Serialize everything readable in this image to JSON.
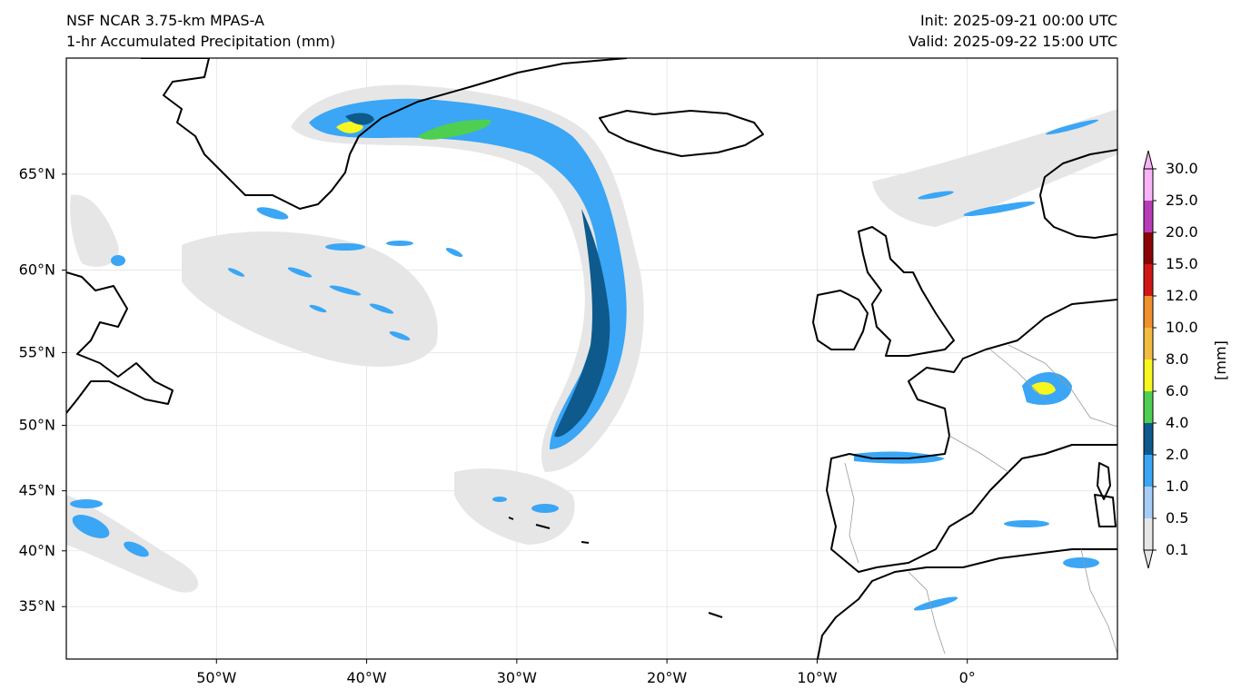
{
  "header": {
    "model": "NSF NCAR 3.75-km MPAS-A",
    "field": "1-hr Accumulated Precipitation (mm)",
    "init": "Init: 2025-09-21 00:00 UTC",
    "valid": "Valid: 2025-09-22 15:00 UTC"
  },
  "axes": {
    "lat_labels": [
      "65°N",
      "60°N",
      "55°N",
      "50°N",
      "45°N",
      "40°N",
      "35°N"
    ],
    "lat_values": [
      65,
      60,
      55,
      50,
      45,
      40,
      35
    ],
    "lon_labels": [
      "50°W",
      "40°W",
      "30°W",
      "20°W",
      "10°W",
      "0°"
    ],
    "lon_values": [
      -50,
      -40,
      -30,
      -20,
      -10,
      0
    ],
    "lon_range": [
      -60,
      10
    ],
    "lat_range": [
      30,
      70
    ],
    "grid": true
  },
  "colorbar": {
    "unit_label": "[mm]",
    "levels": [
      "0.1",
      "0.5",
      "1.0",
      "2.0",
      "4.0",
      "6.0",
      "8.0",
      "10.0",
      "12.0",
      "15.0",
      "20.0",
      "25.0",
      "30.0"
    ],
    "colors": [
      "#e6e6e6",
      "#a6cdf7",
      "#3aa6f5",
      "#0f5a8c",
      "#4fcf52",
      "#f7f720",
      "#f2bc41",
      "#f0902e",
      "#d11616",
      "#8c0505",
      "#b83bb8",
      "#f7b4f7"
    ],
    "extend": "both"
  },
  "colors": {
    "land_outline": "#000000",
    "border": "#9a9a9a",
    "ocean": "#ffffff"
  }
}
